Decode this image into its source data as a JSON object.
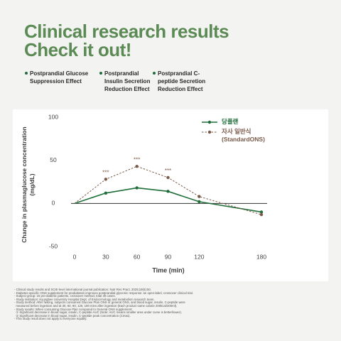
{
  "header": {
    "title": [
      "Clinical research results",
      "Check it out!"
    ],
    "bullets": [
      "Postprandial Glucose Suppression Effect",
      "Postprandial Insulin Secretion Reduction Effect",
      "Postprandial C-peptide Secretion Reduction Effect"
    ]
  },
  "chart_data": {
    "type": "line",
    "xlabel": "Time (min)",
    "ylabel": [
      "Change in plasmaglucose concentration",
      "(mg/dL)"
    ],
    "x": [
      0,
      30,
      60,
      90,
      120,
      180
    ],
    "series": [
      {
        "name": "당플랜",
        "color": "#1f6e3a",
        "dash": false,
        "values": [
          0,
          12,
          18,
          14,
          2,
          -10
        ]
      },
      {
        "name": "자사 일반식 (StandardONS)",
        "color": "#7a5a48",
        "dash": true,
        "values": [
          0,
          28,
          43,
          30,
          8,
          -13
        ]
      }
    ],
    "annotations": [
      {
        "x": 30,
        "text": "***"
      },
      {
        "x": 60,
        "text": "***"
      },
      {
        "x": 90,
        "text": "***"
      }
    ],
    "xlim": [
      0,
      180
    ],
    "xticks": [
      0,
      30,
      60,
      90,
      120,
      180
    ],
    "ylim": [
      -50,
      100
    ],
    "yticks": [
      -50,
      0,
      50,
      100
    ]
  },
  "footnotes": [
    "- Clinical study results and SCIE-level international journal publication: Nutr Res Pract. 2025;19(6):50.",
    "- Diabetes-specific ONS supplement for prediabetes improves postprandial glycemic response: an open-label, crossover clinical trial.",
    "- Subject group: 15 pre-diabetic patients, crossover method, total 30 cases.",
    "- Study institution: Kyungbee University Hospital Dept. of Endocrinology and metabolism research team.",
    "- Study method: After fasting, subjects consumed Glucose Plan ONS or general ONS, and blood sugar, insulin, C-peptide were",
    "  measured before ingestion and at 30, 60, 90, 120, 180 mins after ingestion (Each product same calorie 200kcal/200ml).",
    "- Study results: When consuming Glucose Plan compared to General ONS supplement:",
    "  ① Significant decrease in blood sugar, insulin, C-peptide AUC (Note: AUC means smaller area under curve is better/lower).",
    "  ② Significant decrease in blood sugar, insulin, C-peptide peak concentration (Cmax).",
    "- This study result does not apply to everyone equally."
  ]
}
